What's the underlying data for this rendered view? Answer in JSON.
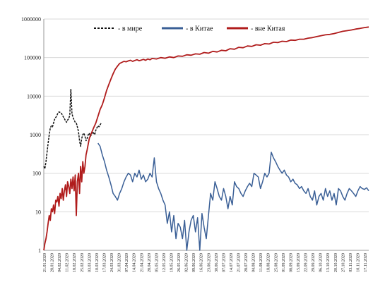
{
  "chart_data": {
    "type": "line",
    "y_scale": "log",
    "ylim": [
      1,
      1000000
    ],
    "grid": {
      "horizontal": true,
      "vertical": false
    },
    "legend_position": "top-center",
    "y_ticks": [
      {
        "value": 1,
        "label": "1"
      },
      {
        "value": 10,
        "label": "10"
      },
      {
        "value": 100,
        "label": "100"
      },
      {
        "value": 1000,
        "label": "1000"
      },
      {
        "value": 10000,
        "label": "10000"
      },
      {
        "value": 100000,
        "label": "100000"
      },
      {
        "value": 1000000,
        "label": "1000000"
      }
    ],
    "x_tick_labels": [
      "21.01.2020",
      "28.01.2020",
      "04.02.2020",
      "11.02.2020",
      "18.02.2020",
      "25.02.2020",
      "03.03.2020",
      "10.03.2020",
      "17.03.2020",
      "24.03.2020",
      "31.03.2020",
      "07.04.2020",
      "14.04.2020",
      "21.04.2020",
      "28.04.2020",
      "05.05.2020",
      "12.05.2020",
      "19.05.2020",
      "26.05.2020",
      "02.06.2020",
      "09.06.2020",
      "16.06.2020",
      "23.06.2020",
      "30.06.2020",
      "07.07.2020",
      "14.07.2020",
      "21.07.2020",
      "28.07.2020",
      "04.08.2020",
      "11.08.2020",
      "18.08.2020",
      "25.08.2020",
      "01.09.2020",
      "08.09.2020",
      "15.09.2020",
      "22.09.2020",
      "29.09.2020",
      "06.10.2020",
      "13.10.2020",
      "20.10.2020",
      "27.10.2020",
      "03.11.2020",
      "10.11.2020",
      "17.11.2020"
    ],
    "series": [
      {
        "name": "- в мире",
        "color": "#111111",
        "dash": true,
        "x": [
          0,
          1,
          2,
          3,
          4,
          5,
          6,
          7,
          8,
          9,
          10,
          11,
          12,
          13,
          14,
          15,
          16,
          17,
          18,
          19,
          20,
          21,
          22,
          23,
          24,
          25,
          26,
          27,
          28,
          29,
          30,
          31,
          32,
          33,
          34,
          35,
          36,
          37,
          38,
          39,
          40,
          41,
          42,
          43,
          44,
          45,
          46,
          47,
          48,
          49,
          50,
          51,
          52,
          53
        ],
        "values": [
          150,
          130,
          200,
          350,
          600,
          1000,
          1500,
          1700,
          1600,
          2000,
          2500,
          2800,
          3100,
          3600,
          3900,
          3800,
          3700,
          3300,
          2900,
          2600,
          2300,
          2100,
          2400,
          2600,
          3200,
          15000,
          3500,
          2800,
          2400,
          2100,
          2000,
          1600,
          1200,
          700,
          500,
          800,
          1000,
          1100,
          900,
          700,
          800,
          1000,
          1100,
          900,
          1000,
          1200,
          1100,
          1000,
          1300,
          1500,
          1700,
          1600,
          1800,
          2000
        ]
      },
      {
        "name": "- в Китае",
        "color": "#3a5f96",
        "dash": false,
        "x": [
          50,
          52,
          54,
          56,
          58,
          60,
          62,
          64,
          66,
          68,
          70,
          72,
          74,
          76,
          78,
          80,
          82,
          84,
          86,
          88,
          90,
          92,
          94,
          96,
          98,
          100,
          102,
          104,
          106,
          108,
          110,
          112,
          114,
          116,
          118,
          120,
          122,
          124,
          126,
          128,
          130,
          132,
          134,
          136,
          138,
          140,
          142,
          144,
          146,
          148,
          150,
          152,
          154,
          156,
          158,
          160,
          162,
          164,
          166,
          168,
          170,
          172,
          174,
          176,
          178,
          180,
          182,
          184,
          186,
          188,
          190,
          192,
          194,
          196,
          198,
          200,
          202,
          204,
          206,
          208,
          210,
          212,
          214,
          216,
          218,
          220,
          222,
          224,
          226,
          228,
          230,
          232,
          234,
          236,
          238,
          240,
          242,
          244,
          246,
          248,
          250,
          252,
          254,
          256,
          258,
          260,
          262,
          264,
          266,
          268,
          270,
          272,
          274,
          276,
          278,
          280,
          282,
          284,
          286,
          288,
          290,
          292,
          294,
          296,
          298,
          300
        ],
        "values": [
          600,
          500,
          300,
          200,
          120,
          80,
          50,
          30,
          25,
          20,
          30,
          40,
          60,
          80,
          100,
          90,
          60,
          100,
          80,
          120,
          70,
          90,
          60,
          70,
          100,
          80,
          250,
          60,
          40,
          30,
          20,
          15,
          5,
          10,
          3,
          8,
          2,
          5,
          4,
          2,
          6,
          1,
          3,
          6,
          8,
          3,
          7,
          1,
          9,
          4,
          2,
          8,
          30,
          20,
          60,
          40,
          25,
          20,
          40,
          25,
          12,
          25,
          15,
          60,
          45,
          40,
          30,
          25,
          35,
          45,
          55,
          45,
          100,
          90,
          80,
          40,
          60,
          100,
          80,
          100,
          350,
          250,
          200,
          150,
          120,
          100,
          120,
          90,
          80,
          60,
          70,
          55,
          50,
          40,
          45,
          35,
          30,
          40,
          25,
          20,
          35,
          15,
          25,
          30,
          20,
          40,
          25,
          35,
          20,
          30,
          15,
          40,
          35,
          25,
          20,
          30,
          40,
          35,
          30,
          25,
          35,
          45,
          40,
          38,
          42,
          35
        ]
      },
      {
        "name": "- вне Китая",
        "color": "#b01c1c",
        "dash": false,
        "x": [
          0,
          1,
          2,
          3,
          4,
          5,
          6,
          7,
          8,
          9,
          10,
          11,
          12,
          13,
          14,
          15,
          16,
          17,
          18,
          19,
          20,
          21,
          22,
          23,
          24,
          25,
          26,
          27,
          28,
          29,
          30,
          31,
          32,
          33,
          34,
          35,
          36,
          37,
          38,
          39,
          40,
          42,
          44,
          46,
          48,
          50,
          52,
          54,
          56,
          58,
          60,
          62,
          64,
          66,
          68,
          70,
          72,
          74,
          76,
          78,
          80,
          82,
          84,
          86,
          88,
          90,
          92,
          94,
          96,
          98,
          100,
          104,
          108,
          112,
          116,
          120,
          124,
          128,
          132,
          136,
          140,
          144,
          148,
          152,
          156,
          160,
          164,
          168,
          172,
          176,
          180,
          184,
          188,
          192,
          196,
          200,
          204,
          208,
          212,
          216,
          220,
          224,
          228,
          232,
          236,
          240,
          244,
          248,
          252,
          256,
          260,
          264,
          268,
          272,
          276,
          280,
          284,
          288,
          292,
          296,
          300
        ],
        "values": [
          1,
          1.5,
          2,
          3,
          5,
          8,
          6,
          12,
          10,
          15,
          9,
          20,
          18,
          25,
          14,
          30,
          22,
          40,
          20,
          35,
          50,
          25,
          60,
          45,
          30,
          70,
          40,
          80,
          35,
          90,
          8,
          60,
          100,
          30,
          150,
          60,
          200,
          100,
          150,
          300,
          400,
          800,
          1100,
          1500,
          2000,
          3000,
          4500,
          6000,
          9000,
          14000,
          20000,
          28000,
          38000,
          50000,
          60000,
          70000,
          75000,
          80000,
          78000,
          82000,
          85000,
          80000,
          84000,
          88000,
          83000,
          86000,
          90000,
          85000,
          92000,
          88000,
          95000,
          92000,
          100000,
          96000,
          104000,
          100000,
          110000,
          108000,
          118000,
          115000,
          125000,
          122000,
          135000,
          130000,
          145000,
          140000,
          155000,
          150000,
          170000,
          165000,
          185000,
          180000,
          200000,
          195000,
          215000,
          210000,
          230000,
          225000,
          250000,
          245000,
          265000,
          260000,
          285000,
          280000,
          300000,
          300000,
          320000,
          330000,
          350000,
          370000,
          390000,
          400000,
          420000,
          450000,
          480000,
          500000,
          520000,
          550000,
          570000,
          600000,
          620000
        ]
      }
    ]
  }
}
